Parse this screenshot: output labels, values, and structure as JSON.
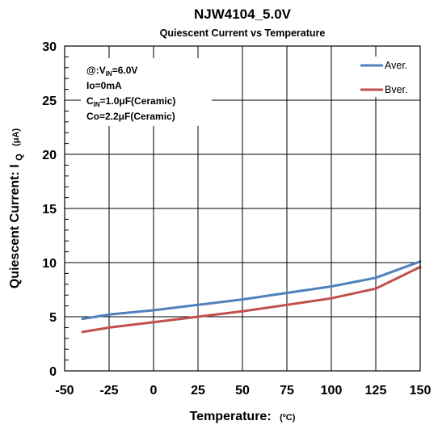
{
  "chart_data": {
    "type": "line",
    "title": "NJW4104_5.0V",
    "subtitle": "Quiescent Current vs Temperature",
    "xlabel": {
      "main": "Temperature:",
      "unit": "(ºC)"
    },
    "ylabel": {
      "main": "Quiescent Current: I",
      "sub": "Q",
      "unit": "(μA)"
    },
    "xlim": [
      -50,
      150
    ],
    "ylim": [
      0,
      30
    ],
    "x_ticks": [
      -50,
      -25,
      0,
      25,
      50,
      75,
      100,
      125,
      150
    ],
    "y_ticks": [
      0,
      5,
      10,
      15,
      20,
      25,
      30
    ],
    "grid": true,
    "legend_position": "top-right",
    "conditions": [
      {
        "main": "@:V",
        "sub": "IN",
        "rest": "=6.0V"
      },
      {
        "main": "Io=0mA",
        "sub": "",
        "rest": ""
      },
      {
        "main": "C",
        "sub": "IN",
        "rest": "=1.0μF(Ceramic)"
      },
      {
        "main": "Co=2.2μF(Ceramic)",
        "sub": "",
        "rest": ""
      }
    ],
    "series": [
      {
        "name": "Aver.",
        "color": "#4f81bd",
        "points": [
          [
            -40,
            4.8
          ],
          [
            -25,
            5.2
          ],
          [
            0,
            5.6
          ],
          [
            25,
            6.1
          ],
          [
            50,
            6.6
          ],
          [
            75,
            7.2
          ],
          [
            100,
            7.8
          ],
          [
            125,
            8.6
          ],
          [
            140,
            9.5
          ],
          [
            150,
            10.1
          ]
        ]
      },
      {
        "name": "Bver.",
        "color": "#c0504d",
        "points": [
          [
            -40,
            3.6
          ],
          [
            -25,
            4.0
          ],
          [
            0,
            4.5
          ],
          [
            25,
            5.0
          ],
          [
            50,
            5.5
          ],
          [
            75,
            6.1
          ],
          [
            100,
            6.7
          ],
          [
            125,
            7.6
          ],
          [
            140,
            8.8
          ],
          [
            150,
            9.6
          ]
        ]
      }
    ]
  }
}
